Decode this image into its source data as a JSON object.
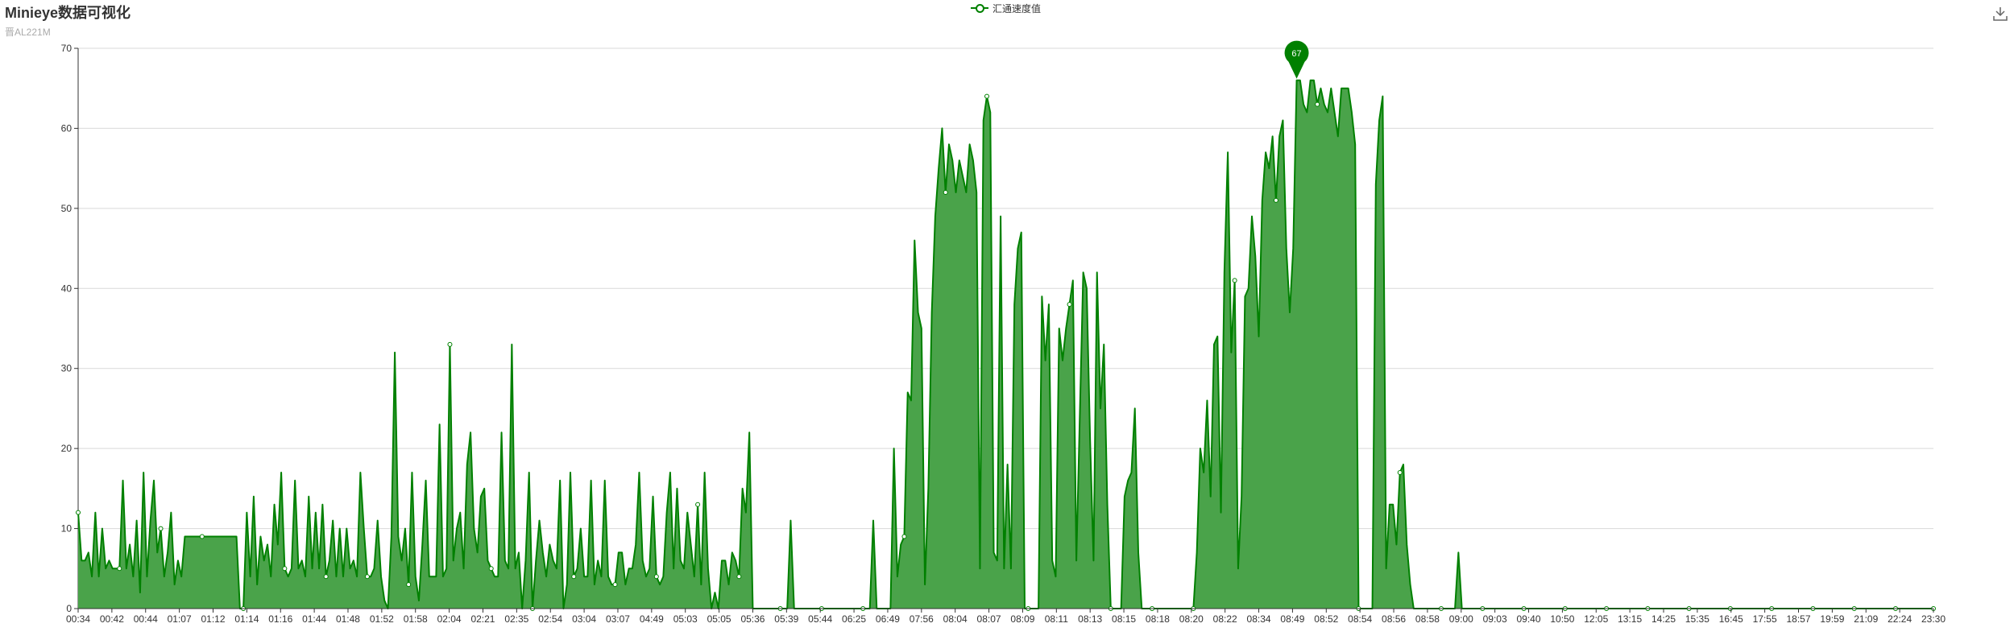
{
  "header": {
    "title": "Minieye数据可视化",
    "subtitle": "晋AL221M"
  },
  "toolbox": {
    "download_icon": "download-icon"
  },
  "chart_data": {
    "type": "area",
    "series": [
      {
        "name": "汇通速度值",
        "color": "#008000",
        "fill": "#4aa34a",
        "max_marker": 67,
        "values": [
          12,
          6,
          6,
          7,
          4,
          12,
          4,
          10,
          5,
          6,
          5,
          5,
          5,
          16,
          5,
          8,
          4,
          11,
          2,
          17,
          4,
          11,
          16,
          7,
          10,
          4,
          7,
          12,
          3,
          6,
          4,
          9,
          9,
          9,
          9,
          9,
          9,
          9,
          9,
          9,
          9,
          9,
          9,
          9,
          9,
          9,
          9,
          0,
          0,
          12,
          4,
          14,
          3,
          9,
          6,
          8,
          4,
          13,
          8,
          17,
          5,
          4,
          5,
          16,
          5,
          6,
          4,
          14,
          5,
          12,
          5,
          13,
          4,
          6,
          11,
          4,
          10,
          4,
          10,
          5,
          6,
          4,
          17,
          10,
          4,
          4,
          5,
          11,
          4,
          1,
          0,
          9,
          32,
          9,
          6,
          10,
          3,
          17,
          4,
          1,
          8,
          16,
          4,
          4,
          4,
          23,
          4,
          5,
          33,
          6,
          10,
          12,
          5,
          18,
          22,
          10,
          7,
          14,
          15,
          6,
          5,
          4,
          4,
          22,
          6,
          5,
          33,
          5,
          7,
          0,
          6,
          17,
          0,
          6,
          11,
          7,
          4,
          8,
          6,
          5,
          16,
          0,
          3,
          17,
          4,
          5,
          10,
          4,
          4,
          16,
          3,
          6,
          4,
          16,
          4,
          3,
          3,
          7,
          7,
          3,
          5,
          5,
          8,
          17,
          6,
          4,
          5,
          14,
          4,
          3,
          4,
          12,
          17,
          5,
          15,
          6,
          5,
          12,
          8,
          4,
          13,
          3,
          17,
          5,
          0,
          2,
          0,
          6,
          6,
          3,
          7,
          6,
          4,
          15,
          12,
          22,
          0,
          0,
          0,
          0,
          0,
          0,
          0,
          0,
          0,
          0,
          0,
          11,
          0,
          0,
          0,
          0,
          0,
          0,
          0,
          0,
          0,
          0,
          0,
          0,
          0,
          0,
          0,
          0,
          0,
          0,
          0,
          0,
          0,
          0,
          0,
          11,
          0,
          0,
          0,
          0,
          0,
          20,
          4,
          8,
          9,
          27,
          26,
          46,
          37,
          35,
          3,
          15,
          37,
          49,
          55,
          60,
          52,
          58,
          56,
          52,
          56,
          54,
          52,
          58,
          56,
          52,
          5,
          61,
          64,
          62,
          7,
          6,
          49,
          5,
          18,
          5,
          38,
          45,
          47,
          0,
          0,
          0,
          0,
          0,
          39,
          31,
          38,
          6,
          4,
          35,
          31,
          35,
          38,
          41,
          6,
          24,
          42,
          40,
          21,
          6,
          42,
          25,
          33,
          13,
          0,
          0,
          0,
          0,
          14,
          16,
          17,
          25,
          7,
          0,
          0,
          0,
          0,
          0,
          0,
          0,
          0,
          0,
          0,
          0,
          0,
          0,
          0,
          0,
          0,
          7,
          20,
          17,
          26,
          14,
          33,
          34,
          12,
          42,
          57,
          32,
          41,
          5,
          14,
          39,
          40,
          49,
          44,
          34,
          51,
          57,
          55,
          59,
          51,
          59,
          61,
          45,
          37,
          45,
          66,
          66,
          63,
          62,
          66,
          66,
          63,
          65,
          63,
          62,
          65,
          62,
          59,
          65,
          65,
          65,
          62,
          58,
          0,
          0,
          0,
          0,
          0,
          53,
          61,
          64,
          5,
          13,
          13,
          8,
          17,
          18,
          8,
          3,
          0,
          0,
          0,
          0,
          0,
          0,
          0,
          0,
          0,
          0,
          0,
          0,
          0,
          7,
          0,
          0,
          0,
          0,
          0,
          0,
          0,
          0,
          0,
          0,
          0,
          0,
          0,
          0,
          0,
          0,
          0,
          0,
          0,
          0,
          0,
          0,
          0,
          0,
          0,
          0,
          0,
          0,
          0,
          0,
          0,
          0,
          0,
          0,
          0,
          0,
          0,
          0,
          0,
          0,
          0,
          0,
          0,
          0,
          0,
          0,
          0,
          0,
          0,
          0,
          0,
          0,
          0,
          0,
          0,
          0,
          0,
          0,
          0,
          0,
          0,
          0,
          0,
          0,
          0,
          0,
          0,
          0,
          0,
          0,
          0,
          0,
          0,
          0,
          0,
          0,
          0,
          0,
          0,
          0,
          0,
          0,
          0,
          0,
          0,
          0,
          0,
          0,
          0,
          0,
          0,
          0,
          0,
          0,
          0,
          0,
          0,
          0,
          0,
          0,
          0,
          0,
          0,
          0,
          0,
          0,
          0,
          0,
          0,
          0,
          0,
          0,
          0,
          0,
          0,
          0,
          0,
          0,
          0,
          0,
          0,
          0,
          0,
          0,
          0,
          0,
          0,
          0,
          0,
          0,
          0,
          0,
          0,
          0,
          0,
          0,
          0,
          0
        ]
      }
    ],
    "x_tick_labels": [
      "00:34",
      "00:42",
      "00:44",
      "01:07",
      "01:12",
      "01:14",
      "01:16",
      "01:44",
      "01:48",
      "01:52",
      "01:58",
      "02:04",
      "02:21",
      "02:35",
      "02:54",
      "03:04",
      "03:07",
      "04:49",
      "05:03",
      "05:05",
      "05:36",
      "05:39",
      "05:44",
      "06:25",
      "06:49",
      "07:56",
      "08:04",
      "08:07",
      "08:09",
      "08:11",
      "08:13",
      "08:15",
      "08:18",
      "08:20",
      "08:22",
      "08:34",
      "08:49",
      "08:52",
      "08:54",
      "08:56",
      "08:58",
      "09:00",
      "09:03",
      "09:40",
      "10:50",
      "12:05",
      "13:15",
      "14:25",
      "15:35",
      "16:45",
      "17:55",
      "18:57",
      "19:59",
      "21:09",
      "22:24",
      "23:30"
    ],
    "y_ticks": [
      0,
      10,
      20,
      30,
      40,
      50,
      60,
      70
    ],
    "ylim": [
      0,
      70
    ],
    "grid": true,
    "legend_position": "top-center"
  }
}
